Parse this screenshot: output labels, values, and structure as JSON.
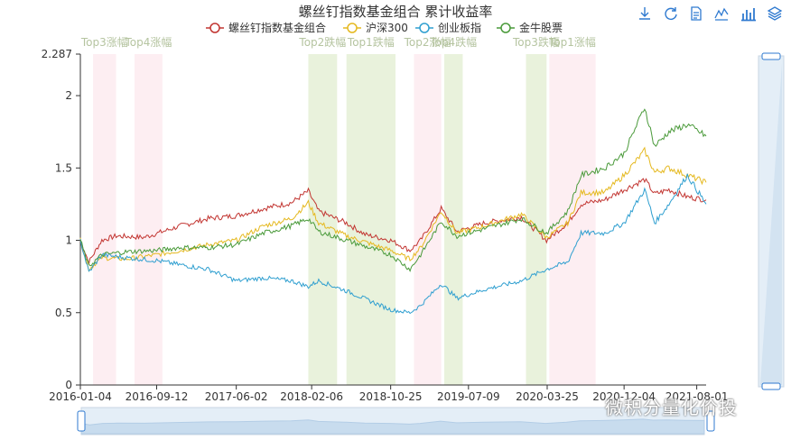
{
  "toolbox": [
    {
      "name": "download-icon"
    },
    {
      "name": "refresh-icon"
    },
    {
      "name": "data-view-icon"
    },
    {
      "name": "line-chart-icon"
    },
    {
      "name": "bar-chart-icon"
    },
    {
      "name": "stack-icon"
    }
  ],
  "watermark": "微积分量化价投",
  "chart_data": {
    "type": "line",
    "title": "螺丝钉指数基金组合 累计收益率",
    "legend_position": "top",
    "ylim": [
      0,
      2.287
    ],
    "yticks": [
      "0",
      "0.5",
      "1",
      "1.5",
      "2",
      "2.287"
    ],
    "xticks": [
      "2016-01-04",
      "2016-09-12",
      "2017-06-02",
      "2018-02-06",
      "2018-10-25",
      "2019-07-09",
      "2020-03-25",
      "2020-12-04",
      "2021-08-01"
    ],
    "xlim": [
      "2016-01-04",
      "2021-09-01"
    ],
    "series": [
      {
        "name": "螺丝钉指数基金组合",
        "color": "#c23531",
        "points": [
          [
            "2016-01-04",
            1.0
          ],
          [
            "2016-02-01",
            0.85
          ],
          [
            "2016-03-15",
            1.0
          ],
          [
            "2016-05-01",
            1.03
          ],
          [
            "2016-08-01",
            1.02
          ],
          [
            "2016-12-01",
            1.1
          ],
          [
            "2017-03-01",
            1.15
          ],
          [
            "2017-06-02",
            1.17
          ],
          [
            "2017-09-01",
            1.22
          ],
          [
            "2017-12-01",
            1.26
          ],
          [
            "2018-01-26",
            1.34
          ],
          [
            "2018-03-01",
            1.2
          ],
          [
            "2018-06-01",
            1.12
          ],
          [
            "2018-08-01",
            1.04
          ],
          [
            "2018-10-25",
            1.0
          ],
          [
            "2018-12-28",
            0.93
          ],
          [
            "2019-02-01",
            1.0
          ],
          [
            "2019-04-10",
            1.22
          ],
          [
            "2019-06-01",
            1.06
          ],
          [
            "2019-09-01",
            1.12
          ],
          [
            "2019-12-31",
            1.16
          ],
          [
            "2020-03-23",
            1.0
          ],
          [
            "2020-06-01",
            1.12
          ],
          [
            "2020-07-15",
            1.25
          ],
          [
            "2020-10-01",
            1.28
          ],
          [
            "2020-12-04",
            1.35
          ],
          [
            "2021-02-10",
            1.42
          ],
          [
            "2021-03-15",
            1.32
          ],
          [
            "2021-05-01",
            1.35
          ],
          [
            "2021-07-01",
            1.3
          ],
          [
            "2021-09-01",
            1.28
          ]
        ]
      },
      {
        "name": "沪深300",
        "color": "#e5b920",
        "points": [
          [
            "2016-01-04",
            1.0
          ],
          [
            "2016-02-01",
            0.8
          ],
          [
            "2016-03-15",
            0.88
          ],
          [
            "2016-06-01",
            0.87
          ],
          [
            "2016-09-12",
            0.9
          ],
          [
            "2016-12-01",
            0.93
          ],
          [
            "2017-03-01",
            0.97
          ],
          [
            "2017-06-02",
            1.0
          ],
          [
            "2017-09-01",
            1.1
          ],
          [
            "2017-12-01",
            1.15
          ],
          [
            "2018-01-26",
            1.26
          ],
          [
            "2018-03-01",
            1.12
          ],
          [
            "2018-06-01",
            1.03
          ],
          [
            "2018-10-25",
            0.93
          ],
          [
            "2018-12-28",
            0.87
          ],
          [
            "2019-02-01",
            0.95
          ],
          [
            "2019-04-10",
            1.2
          ],
          [
            "2019-06-01",
            1.05
          ],
          [
            "2019-09-01",
            1.1
          ],
          [
            "2019-12-31",
            1.18
          ],
          [
            "2020-03-23",
            1.02
          ],
          [
            "2020-06-01",
            1.12
          ],
          [
            "2020-07-15",
            1.33
          ],
          [
            "2020-10-01",
            1.33
          ],
          [
            "2020-12-04",
            1.45
          ],
          [
            "2021-02-10",
            1.62
          ],
          [
            "2021-03-15",
            1.47
          ],
          [
            "2021-05-01",
            1.5
          ],
          [
            "2021-07-01",
            1.45
          ],
          [
            "2021-09-01",
            1.4
          ]
        ]
      },
      {
        "name": "创业板指",
        "color": "#2f9fd0",
        "points": [
          [
            "2016-01-04",
            1.0
          ],
          [
            "2016-02-01",
            0.78
          ],
          [
            "2016-03-15",
            0.9
          ],
          [
            "2016-06-01",
            0.88
          ],
          [
            "2016-09-12",
            0.86
          ],
          [
            "2016-12-01",
            0.83
          ],
          [
            "2017-03-01",
            0.8
          ],
          [
            "2017-06-02",
            0.72
          ],
          [
            "2017-09-01",
            0.74
          ],
          [
            "2017-12-01",
            0.72
          ],
          [
            "2018-01-26",
            0.68
          ],
          [
            "2018-03-01",
            0.72
          ],
          [
            "2018-06-01",
            0.65
          ],
          [
            "2018-10-25",
            0.52
          ],
          [
            "2018-12-28",
            0.5
          ],
          [
            "2019-02-01",
            0.55
          ],
          [
            "2019-04-10",
            0.7
          ],
          [
            "2019-06-01",
            0.6
          ],
          [
            "2019-09-01",
            0.66
          ],
          [
            "2019-12-31",
            0.72
          ],
          [
            "2020-03-23",
            0.8
          ],
          [
            "2020-06-01",
            0.85
          ],
          [
            "2020-07-15",
            1.05
          ],
          [
            "2020-10-01",
            1.05
          ],
          [
            "2020-12-04",
            1.12
          ],
          [
            "2021-02-10",
            1.35
          ],
          [
            "2021-03-15",
            1.12
          ],
          [
            "2021-05-01",
            1.25
          ],
          [
            "2021-07-01",
            1.45
          ],
          [
            "2021-09-01",
            1.25
          ]
        ]
      },
      {
        "name": "金牛股票",
        "color": "#4a9a3a",
        "points": [
          [
            "2016-01-04",
            1.0
          ],
          [
            "2016-02-01",
            0.82
          ],
          [
            "2016-03-15",
            0.9
          ],
          [
            "2016-06-01",
            0.92
          ],
          [
            "2016-09-12",
            0.93
          ],
          [
            "2016-12-01",
            0.95
          ],
          [
            "2017-03-01",
            0.95
          ],
          [
            "2017-06-02",
            0.97
          ],
          [
            "2017-09-01",
            1.05
          ],
          [
            "2017-12-01",
            1.1
          ],
          [
            "2018-01-26",
            1.15
          ],
          [
            "2018-03-01",
            1.06
          ],
          [
            "2018-06-01",
            1.0
          ],
          [
            "2018-10-25",
            0.9
          ],
          [
            "2018-12-28",
            0.8
          ],
          [
            "2019-02-01",
            0.9
          ],
          [
            "2019-04-10",
            1.13
          ],
          [
            "2019-06-01",
            1.03
          ],
          [
            "2019-09-01",
            1.08
          ],
          [
            "2019-12-31",
            1.15
          ],
          [
            "2020-03-23",
            1.05
          ],
          [
            "2020-06-01",
            1.2
          ],
          [
            "2020-07-15",
            1.45
          ],
          [
            "2020-10-01",
            1.5
          ],
          [
            "2020-12-04",
            1.6
          ],
          [
            "2021-02-10",
            1.92
          ],
          [
            "2021-03-15",
            1.65
          ],
          [
            "2021-05-01",
            1.75
          ],
          [
            "2021-07-01",
            1.8
          ],
          [
            "2021-09-01",
            1.72
          ]
        ]
      }
    ],
    "bands": [
      {
        "label": "Top3涨幅",
        "start": "2016-02-15",
        "end": "2016-05-01",
        "color": "#fdeef2"
      },
      {
        "label": "Top4涨幅",
        "start": "2016-07-01",
        "end": "2016-10-01",
        "color": "#fdeef2"
      },
      {
        "label": "Top2跌幅",
        "start": "2018-01-26",
        "end": "2018-05-01",
        "color": "#e9f2dc"
      },
      {
        "label": "Top1跌幅",
        "start": "2018-06-01",
        "end": "2018-11-10",
        "color": "#e9f2dc"
      },
      {
        "label": "Top2涨幅",
        "start": "2019-01-10",
        "end": "2019-04-10",
        "color": "#fdeef2"
      },
      {
        "label": "Top4跌幅",
        "start": "2019-04-20",
        "end": "2019-06-20",
        "color": "#e9f2dc"
      },
      {
        "label": "Top3跌幅",
        "start": "2020-01-15",
        "end": "2020-03-23",
        "color": "#e9f2dc"
      },
      {
        "label": "Top1涨幅",
        "start": "2020-04-01",
        "end": "2020-09-01",
        "color": "#fdeef2"
      }
    ]
  }
}
